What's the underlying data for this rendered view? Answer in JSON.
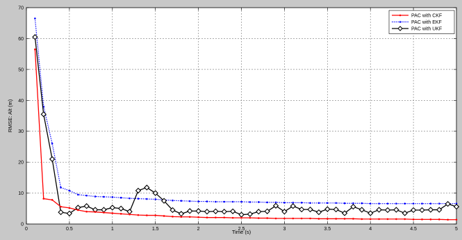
{
  "chart_data": {
    "type": "line",
    "xlabel": "Time (s)",
    "ylabel": "RMSE: Alt (m)",
    "xlim": [
      0,
      5
    ],
    "ylim": [
      0,
      70
    ],
    "xticks": [
      "0",
      "0.5",
      "1",
      "1.5",
      "2",
      "2.5",
      "3",
      "3.5",
      "4",
      "4.5",
      "5"
    ],
    "yticks": [
      "0",
      "10",
      "20",
      "30",
      "40",
      "50",
      "60",
      "70"
    ],
    "grid": true,
    "legend_position": "top-right",
    "series": [
      {
        "name": "PAC with CKF",
        "color": "#ff0000",
        "line_style": "solid",
        "marker": "dot",
        "x": [
          0.1,
          0.2,
          0.3,
          0.4,
          0.5,
          0.6,
          0.7,
          0.8,
          0.9,
          1.0,
          1.1,
          1.2,
          1.3,
          1.4,
          1.5,
          1.6,
          1.7,
          1.8,
          1.9,
          2.0,
          2.1,
          2.2,
          2.3,
          2.4,
          2.5,
          2.6,
          2.7,
          2.8,
          2.9,
          3.0,
          3.1,
          3.2,
          3.3,
          3.4,
          3.5,
          3.6,
          3.7,
          3.8,
          3.9,
          4.0,
          4.1,
          4.2,
          4.3,
          4.4,
          4.5,
          4.6,
          4.7,
          4.8,
          4.9,
          5.0
        ],
        "y": [
          56.5,
          8.2,
          7.8,
          5.6,
          5.2,
          4.5,
          4.0,
          3.9,
          3.7,
          3.5,
          3.3,
          3.1,
          2.9,
          2.8,
          2.8,
          2.6,
          2.4,
          2.3,
          2.3,
          2.2,
          2.1,
          2.1,
          2.1,
          2.0,
          2.0,
          2.0,
          1.9,
          1.9,
          1.8,
          1.8,
          1.8,
          1.8,
          1.8,
          1.7,
          1.7,
          1.7,
          1.7,
          1.7,
          1.6,
          1.6,
          1.6,
          1.6,
          1.6,
          1.6,
          1.5,
          1.5,
          1.5,
          1.5,
          1.4,
          1.4
        ]
      },
      {
        "name": "PAC with EKF",
        "color": "#0000ff",
        "line_style": "dotted",
        "marker": "dot",
        "x": [
          0.1,
          0.2,
          0.3,
          0.4,
          0.5,
          0.6,
          0.7,
          0.8,
          0.9,
          1.0,
          1.1,
          1.2,
          1.3,
          1.4,
          1.5,
          1.6,
          1.7,
          1.8,
          1.9,
          2.0,
          2.1,
          2.2,
          2.3,
          2.4,
          2.5,
          2.6,
          2.7,
          2.8,
          2.9,
          3.0,
          3.1,
          3.2,
          3.3,
          3.4,
          3.5,
          3.6,
          3.7,
          3.8,
          3.9,
          4.0,
          4.1,
          4.2,
          4.3,
          4.4,
          4.5,
          4.6,
          4.7,
          4.8,
          4.9,
          5.0
        ],
        "y": [
          66.5,
          38.0,
          26.0,
          11.8,
          10.8,
          9.5,
          9.2,
          8.9,
          8.8,
          8.7,
          8.5,
          8.3,
          8.2,
          8.1,
          8.0,
          7.8,
          7.6,
          7.5,
          7.4,
          7.3,
          7.3,
          7.2,
          7.2,
          7.2,
          7.2,
          7.1,
          7.1,
          7.0,
          7.0,
          6.9,
          6.9,
          6.9,
          6.8,
          6.8,
          6.8,
          6.8,
          6.7,
          6.7,
          6.7,
          6.6,
          6.6,
          6.6,
          6.6,
          6.6,
          6.6,
          6.6,
          6.6,
          6.6,
          6.6,
          6.6
        ]
      },
      {
        "name": "PAC with UKF",
        "color": "#000000",
        "line_style": "solid",
        "marker": "diamond",
        "x": [
          0.1,
          0.2,
          0.3,
          0.4,
          0.5,
          0.6,
          0.7,
          0.8,
          0.9,
          1.0,
          1.1,
          1.2,
          1.3,
          1.4,
          1.5,
          1.6,
          1.7,
          1.8,
          1.9,
          2.0,
          2.1,
          2.2,
          2.3,
          2.4,
          2.5,
          2.6,
          2.7,
          2.8,
          2.9,
          3.0,
          3.1,
          3.2,
          3.3,
          3.4,
          3.5,
          3.6,
          3.7,
          3.8,
          3.9,
          4.0,
          4.1,
          4.2,
          4.3,
          4.4,
          4.5,
          4.6,
          4.7,
          4.8,
          4.9,
          5.0
        ],
        "y": [
          60.5,
          35.5,
          21.0,
          3.8,
          3.4,
          5.3,
          5.8,
          4.6,
          4.6,
          5.3,
          5.0,
          4.0,
          10.8,
          11.8,
          10.0,
          7.5,
          4.5,
          3.3,
          4.2,
          4.2,
          4.0,
          4.1,
          4.0,
          4.1,
          3.0,
          3.2,
          4.0,
          4.1,
          5.9,
          4.0,
          5.8,
          4.7,
          4.7,
          3.8,
          4.8,
          4.7,
          3.5,
          5.6,
          4.6,
          3.5,
          4.6,
          4.5,
          4.6,
          3.5,
          4.5,
          4.5,
          4.6,
          4.6,
          6.5,
          5.6
        ]
      }
    ]
  }
}
